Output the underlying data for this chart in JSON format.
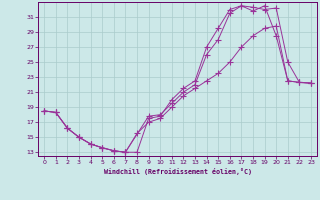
{
  "xlabel": "Windchill (Refroidissement éolien,°C)",
  "xlim": [
    -0.5,
    23.5
  ],
  "ylim": [
    12.5,
    33.0
  ],
  "yticks": [
    13,
    15,
    17,
    19,
    21,
    23,
    25,
    27,
    29,
    31
  ],
  "xticks": [
    0,
    1,
    2,
    3,
    4,
    5,
    6,
    7,
    8,
    9,
    10,
    11,
    12,
    13,
    14,
    15,
    16,
    17,
    18,
    19,
    20,
    21,
    22,
    23
  ],
  "bg_color": "#cce8e8",
  "grid_color": "#aacccc",
  "line_color": "#993399",
  "line1_x": [
    0,
    1,
    2,
    3,
    4,
    5,
    6,
    7,
    9,
    10,
    11,
    12,
    13,
    14,
    15,
    16,
    17,
    18,
    19,
    20,
    21,
    22,
    23
  ],
  "line1_y": [
    18.5,
    18.3,
    16.2,
    15.0,
    14.1,
    13.6,
    13.2,
    13.0,
    17.8,
    18.0,
    19.5,
    21.0,
    22.0,
    26.0,
    28.0,
    31.5,
    32.5,
    32.3,
    32.0,
    32.2,
    25.0,
    22.3,
    22.2
  ],
  "line2_x": [
    0,
    1,
    2,
    3,
    4,
    5,
    6,
    7,
    8,
    9,
    10,
    11,
    12,
    13,
    14,
    15,
    16,
    17,
    18,
    19,
    20,
    21,
    22,
    23
  ],
  "line2_y": [
    18.5,
    18.3,
    16.2,
    15.0,
    14.1,
    13.6,
    13.2,
    13.0,
    13.0,
    17.5,
    17.8,
    20.0,
    21.5,
    22.5,
    27.0,
    29.5,
    32.0,
    32.5,
    31.8,
    32.5,
    28.5,
    22.5,
    22.3,
    22.2
  ],
  "line3_x": [
    0,
    1,
    2,
    3,
    4,
    5,
    6,
    7,
    8,
    9,
    10,
    11,
    12,
    13,
    14,
    15,
    16,
    17,
    18,
    19,
    20,
    21,
    22,
    23
  ],
  "line3_y": [
    18.5,
    18.3,
    16.2,
    15.0,
    14.1,
    13.6,
    13.2,
    13.0,
    15.5,
    17.0,
    17.5,
    19.0,
    20.5,
    21.5,
    22.5,
    23.5,
    25.0,
    27.0,
    28.5,
    29.5,
    29.8,
    22.5,
    22.3,
    22.2
  ]
}
